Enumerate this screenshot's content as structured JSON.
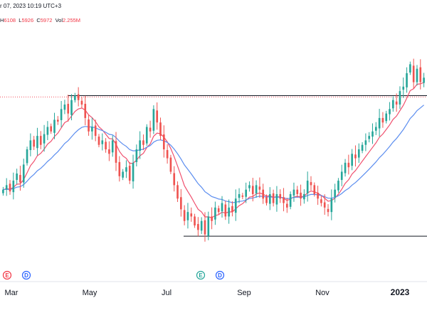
{
  "header": {
    "datetime_text": "r 07, 2023 10:19 UTC+3",
    "ohlc": [
      {
        "label": "H",
        "value": "6108"
      },
      {
        "label": "L",
        "value": "5926"
      },
      {
        "label": "C",
        "value": "5972"
      },
      {
        "label": "Vol",
        "value": "2.255M"
      }
    ]
  },
  "colors": {
    "up": "#26a69a",
    "down": "#ef5350",
    "ma_fast": "#f0506e",
    "ma_slow": "#5b8def",
    "level_line": "#131722",
    "price_dotted": "#f23645"
  },
  "chart_data": {
    "type": "candlestick",
    "x_ticks": [
      "Mar",
      "May",
      "Jul",
      "Sep",
      "Nov",
      "2023"
    ],
    "bold_ticks": [
      "2023"
    ],
    "y_range": [
      4100,
      6800
    ],
    "grid": false,
    "horizontal_levels": [
      6050,
      4480
    ],
    "price_marker": 6035,
    "events": [
      {
        "label": "E",
        "near": "Mar",
        "color": "#f23645"
      },
      {
        "label": "D",
        "near": "Mar",
        "color": "#2962ff"
      },
      {
        "label": "E",
        "near": "Aug",
        "color": "#26a69a"
      },
      {
        "label": "D",
        "near": "Aug",
        "color": "#2962ff"
      }
    ],
    "series": [
      {
        "type": "candles",
        "close": [
          5000,
          5050,
          4980,
          5100,
          5180,
          5080,
          5280,
          5450,
          5550,
          5480,
          5600,
          5500,
          5620,
          5700,
          5650,
          5780,
          5760,
          5900,
          5950,
          5850,
          6000,
          6050,
          6000,
          5950,
          5800,
          5650,
          5700,
          5600,
          5500,
          5550,
          5450,
          5400,
          5550,
          5300,
          5150,
          5200,
          5250,
          5100,
          5300,
          5450,
          5550,
          5500,
          5700,
          5650,
          5900,
          5750,
          5600,
          5450,
          5350,
          5200,
          5050,
          4900,
          4780,
          4650,
          4750,
          4700,
          4600,
          4550,
          4650,
          4500,
          4700,
          4650,
          4800,
          4750,
          4850,
          4700,
          4800,
          4750,
          4900,
          4950,
          4920,
          5000,
          5050,
          4950,
          5050,
          5000,
          4900,
          4850,
          4950,
          4850,
          4950,
          4900,
          4850,
          4800,
          4950,
          5000,
          4950,
          4900,
          4950,
          5100,
          5050,
          4950,
          4900,
          4850,
          4800,
          4750,
          4900,
          5000,
          5100,
          5200,
          5300,
          5250,
          5400,
          5350,
          5450,
          5500,
          5550,
          5600,
          5650,
          5700,
          5800,
          5750,
          5850,
          5900,
          6000,
          5950,
          6100,
          6150,
          6300,
          6400,
          6200,
          6350,
          6200,
          6250
        ]
      },
      {
        "type": "line",
        "name": "",
        "role": "fast moving average",
        "color": "#f0506e"
      },
      {
        "type": "line",
        "name": "",
        "role": "slow moving average",
        "color": "#5b8def"
      }
    ]
  }
}
